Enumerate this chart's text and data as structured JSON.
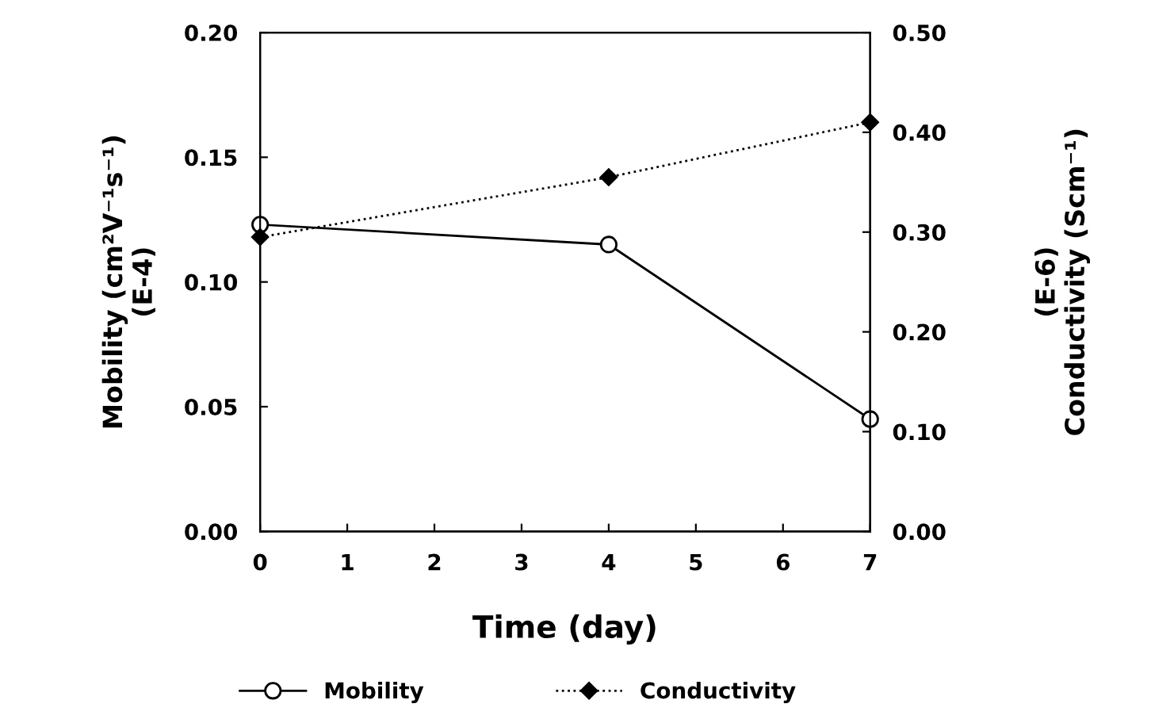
{
  "chart_data": {
    "type": "line",
    "xlabel": "Time (day)",
    "ylabel": "Mobility (cm²V⁻¹s⁻¹)\n(E-4)",
    "y2label": "(E-6)\nConductivity (Scm⁻¹)",
    "x": [
      0,
      4,
      7
    ],
    "series": [
      {
        "name": "Mobility",
        "color": "#000000",
        "values": [
          0.123,
          0.115,
          0.045
        ],
        "marker": "circle",
        "line_style": "solid"
      },
      {
        "name": "Conductivity",
        "color": "#000000",
        "values": [
          0.295,
          0.355,
          0.41
        ],
        "marker": "diamond",
        "line_style": "dotted",
        "axis": "y2"
      }
    ],
    "xlim": [
      0,
      7
    ],
    "xticks": [
      0,
      1,
      2,
      3,
      4,
      5,
      6,
      7
    ],
    "ylim": [
      0,
      0.2
    ],
    "yticks": [
      {
        "value": 0,
        "label": "0.00"
      },
      {
        "value": 0.05,
        "label": "0.05"
      },
      {
        "value": 0.1,
        "label": "0.10"
      },
      {
        "value": 0.15,
        "label": "0.15"
      },
      {
        "value": 0.2,
        "label": "0.20"
      }
    ],
    "y2lim": [
      0,
      0.5
    ],
    "y2ticks": [
      {
        "value": 0,
        "label": "0.00"
      },
      {
        "value": 0.1,
        "label": "0.10"
      },
      {
        "value": 0.2,
        "label": "0.20"
      },
      {
        "value": 0.3,
        "label": "0.30"
      },
      {
        "value": 0.4,
        "label": "0.40"
      },
      {
        "value": 0.5,
        "label": "0.50"
      }
    ],
    "grid": false,
    "legend": "bottom"
  }
}
